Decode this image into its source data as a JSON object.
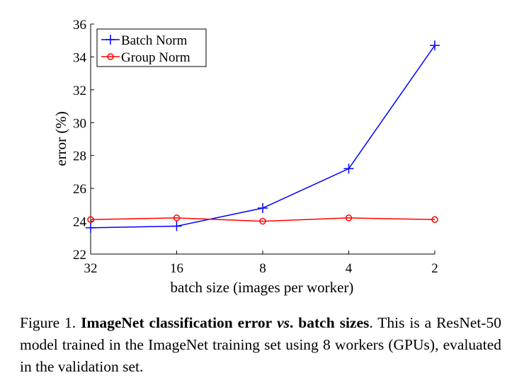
{
  "chart_data": {
    "type": "line",
    "xlabel": "batch size (images per worker)",
    "ylabel": "error (%)",
    "categories": [
      "32",
      "16",
      "8",
      "4",
      "2"
    ],
    "ylim": [
      22,
      36
    ],
    "yticks": [
      22,
      24,
      26,
      28,
      30,
      32,
      34,
      36
    ],
    "grid": false,
    "legend_position": "top-left",
    "series": [
      {
        "name": "Batch Norm",
        "values": [
          23.6,
          23.7,
          24.8,
          27.2,
          34.7
        ],
        "color": "#0000ff",
        "marker": "plus"
      },
      {
        "name": "Group Norm",
        "values": [
          24.1,
          24.2,
          24.0,
          24.2,
          24.1
        ],
        "color": "#ff0000",
        "marker": "circle"
      }
    ]
  },
  "caption": {
    "prefix": "Figure 1.",
    "bold_1": "ImageNet classification error",
    "italic_bold": "vs",
    "bold_2": ". batch sizes",
    "rest": ".  This is a ResNet-50 model trained in the ImageNet training set using 8 workers (GPUs), evaluated in the validation set."
  }
}
